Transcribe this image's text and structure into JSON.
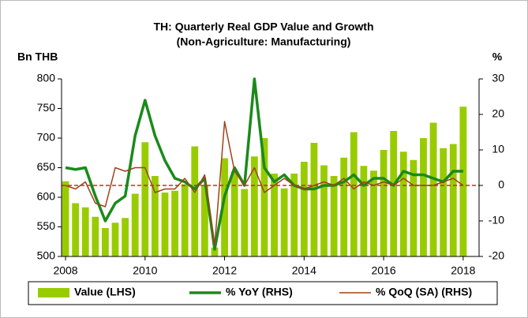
{
  "chart_data": {
    "type": "bar_line",
    "title": "TH: Quarterly Real GDP Value and Growth",
    "subtitle": "(Non-Agriculture: Manufacturing)",
    "ylabel": "Bn THB",
    "y2label": "%",
    "x": [
      2008,
      2008.25,
      2008.5,
      2008.75,
      2009,
      2009.25,
      2009.5,
      2009.75,
      2010,
      2010.25,
      2010.5,
      2010.75,
      2011,
      2011.25,
      2011.5,
      2011.75,
      2012,
      2012.25,
      2012.5,
      2012.75,
      2013,
      2013.25,
      2013.5,
      2013.75,
      2014,
      2014.25,
      2014.5,
      2014.75,
      2015,
      2015.25,
      2015.5,
      2015.75,
      2016,
      2016.25,
      2016.5,
      2016.75,
      2017,
      2017.25,
      2017.5,
      2017.75,
      2018
    ],
    "series": [
      {
        "name": "Value (LHS)",
        "kind": "bar",
        "color": "#99cc00",
        "axis": "y",
        "values": [
          627,
          590,
          583,
          567,
          548,
          557,
          565,
          606,
          693,
          636,
          608,
          611,
          622,
          686,
          620,
          515,
          666,
          643,
          614,
          669,
          700,
          640,
          615,
          640,
          660,
          692,
          654,
          636,
          667,
          710,
          653,
          645,
          680,
          712,
          677,
          663,
          700,
          726,
          683,
          690,
          753
        ]
      },
      {
        "name": "% YoY (RHS)",
        "kind": "line",
        "color": "#1a8a1a",
        "width": 3.5,
        "axis": "y2",
        "values": [
          5,
          4.5,
          5,
          -3,
          -10,
          -5,
          -3,
          14,
          24,
          14,
          7,
          2,
          1,
          -1,
          2,
          -18,
          -3,
          5,
          0,
          30,
          5,
          1,
          3,
          0,
          -1,
          -1,
          0,
          0,
          1,
          3,
          0,
          2,
          2,
          0,
          4,
          3,
          3,
          2,
          1,
          4,
          4
        ]
      },
      {
        "name": "% QoQ (SA) (RHS)",
        "kind": "line",
        "color": "#a0401a",
        "width": 1.5,
        "axis": "y2",
        "values": [
          0,
          -1,
          1,
          -5,
          -6,
          5,
          4,
          5,
          5,
          -2,
          -1,
          -1,
          2,
          -2,
          3,
          -17,
          18,
          4,
          0,
          5,
          -2,
          0,
          2,
          0,
          -1,
          0,
          1,
          0,
          2,
          -1,
          1,
          0,
          1,
          0,
          2,
          0,
          0,
          0,
          1,
          2,
          0
        ]
      }
    ],
    "xlim": [
      2007.9,
      2018.4
    ],
    "xticks": [
      2008,
      2010,
      2012,
      2014,
      2016,
      2018
    ],
    "ylim": [
      500,
      800
    ],
    "yticks": [
      500,
      550,
      600,
      650,
      700,
      750,
      800
    ],
    "y2lim": [
      -20,
      30
    ],
    "y2ticks": [
      -20,
      -10,
      0,
      10,
      20,
      30
    ],
    "y2_ref_line": 0,
    "ref_color": "#e02020",
    "legend": "bottom"
  }
}
